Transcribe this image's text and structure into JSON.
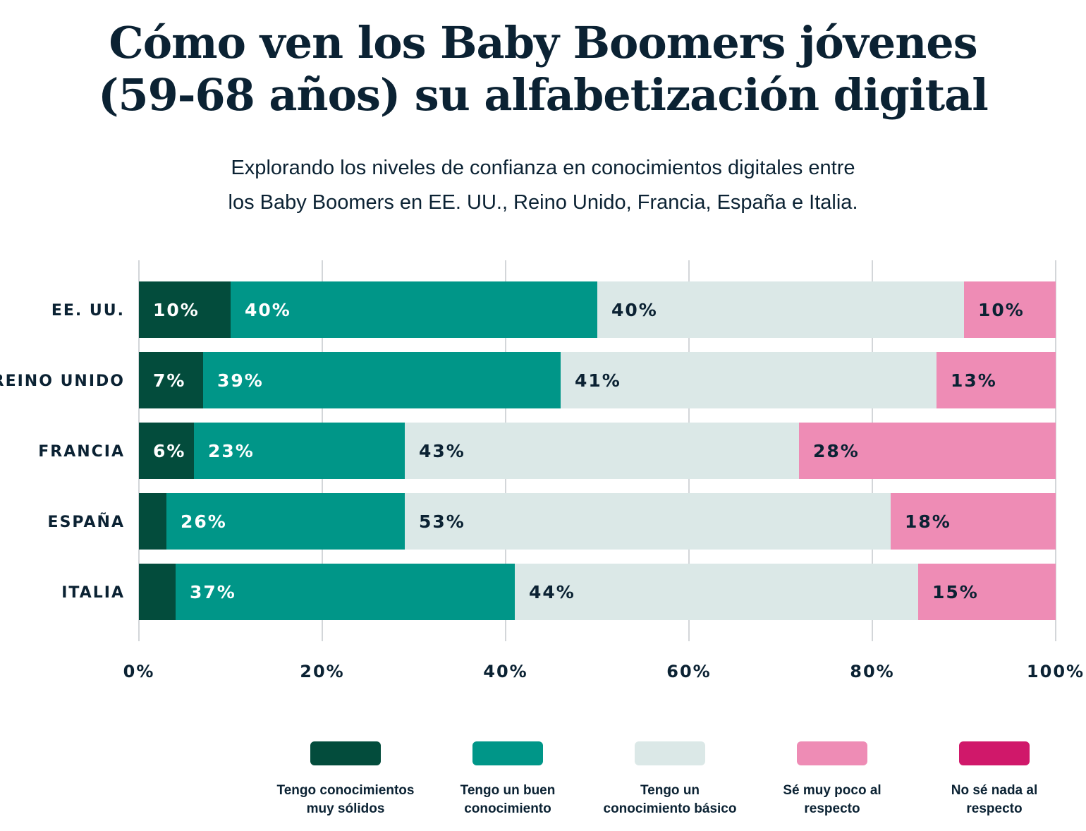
{
  "title_line1": "Cómo ven los Baby Boomers jóvenes",
  "title_line2": "(59-68 años) su alfabetización digital",
  "subtitle_line1": "Explorando los niveles de confianza en conocimientos digitales entre",
  "subtitle_line2": "los Baby Boomers en EE. UU., Reino Unido, Francia, España e Italia.",
  "chart_data": {
    "type": "bar",
    "orientation": "horizontal",
    "stacked": true,
    "categories": [
      "EE. UU.",
      "REINO UNIDO",
      "FRANCIA",
      "ESPAÑA",
      "ITALIA"
    ],
    "series": [
      {
        "name": "Tengo conocimientos muy sólidos",
        "color": "#034c3c",
        "values": [
          10,
          7,
          6,
          3,
          4
        ],
        "labels": [
          "10%",
          "7%",
          "6%",
          null,
          null
        ]
      },
      {
        "name": "Tengo un buen conocimiento",
        "color": "#009688",
        "values": [
          40,
          39,
          23,
          26,
          37
        ],
        "labels": [
          "40%",
          "39%",
          "23%",
          "26%",
          "37%"
        ]
      },
      {
        "name": "Tengo un conocimiento básico",
        "color": "#dbe8e7",
        "values": [
          40,
          41,
          43,
          53,
          44
        ],
        "labels": [
          "40%",
          "41%",
          "43%",
          "53%",
          "44%"
        ]
      },
      {
        "name": "Sé muy poco al respecto",
        "color": "#ee8cb5",
        "values": [
          10,
          13,
          28,
          18,
          15
        ],
        "labels": [
          "10%",
          "13%",
          "28%",
          "18%",
          "15%"
        ]
      },
      {
        "name": "No sé nada al respecto",
        "color": "#d0186a",
        "values": [
          0,
          0,
          0,
          0,
          0
        ],
        "labels": [
          null,
          null,
          null,
          null,
          null
        ]
      }
    ],
    "legend_lines": [
      [
        "Tengo conocimientos",
        "muy sólidos"
      ],
      [
        "Tengo un buen",
        "conocimiento"
      ],
      [
        "Tengo un",
        "conocimiento básico"
      ],
      [
        "Sé muy poco al",
        "respecto"
      ],
      [
        "No sé nada al",
        "respecto"
      ]
    ],
    "xlim": [
      0,
      100
    ],
    "xticks": [
      "0%",
      "20%",
      "40%",
      "60%",
      "80%",
      "100%"
    ],
    "grid": true,
    "legend_placement": "bottom"
  }
}
